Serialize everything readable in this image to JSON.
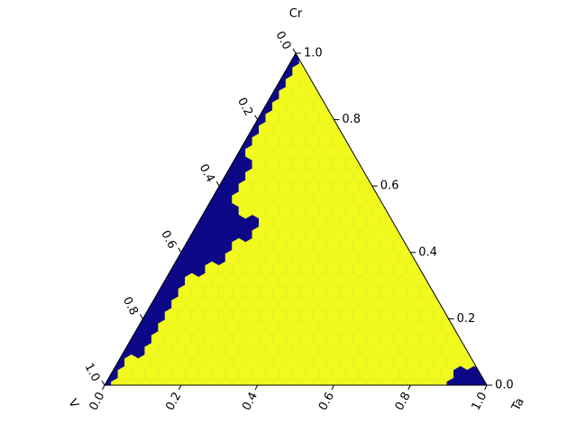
{
  "chart_data": {
    "type": "ternary-hexbin",
    "title": "",
    "axes": {
      "top": {
        "label": "Cr"
      },
      "left": {
        "label": "V"
      },
      "right": {
        "label": "Ta"
      }
    },
    "ticks": [
      "0.0",
      "0.2",
      "0.4",
      "0.6",
      "0.8",
      "1.0"
    ],
    "tick_values": [
      0,
      0.2,
      0.4,
      0.6,
      0.8,
      1.0
    ],
    "grid": false,
    "colors": {
      "phase_a": "#f2fa1d",
      "phase_b": "#0d0887",
      "hex_edge": "#e3ea2a",
      "frame": "#000000"
    },
    "regions": [
      {
        "phase": "phase_b",
        "description_free": true,
        "boundary_ta_at_cr": [
          [
            0.0,
            0.035
          ],
          [
            0.1,
            0.035
          ],
          [
            0.2,
            0.045
          ],
          [
            0.3,
            0.055
          ],
          [
            0.35,
            0.09
          ],
          [
            0.4,
            0.12
          ],
          [
            0.45,
            0.15
          ],
          [
            0.5,
            0.14
          ],
          [
            0.55,
            0.06
          ],
          [
            0.6,
            0.04
          ],
          [
            0.7,
            0.035
          ],
          [
            0.8,
            0.025
          ],
          [
            0.9,
            0.02
          ],
          [
            1.0,
            0.0
          ]
        ]
      },
      {
        "phase": "phase_b",
        "corner_cluster": {
          "ta_min": 0.9,
          "cr_max": 0.04
        }
      }
    ]
  }
}
